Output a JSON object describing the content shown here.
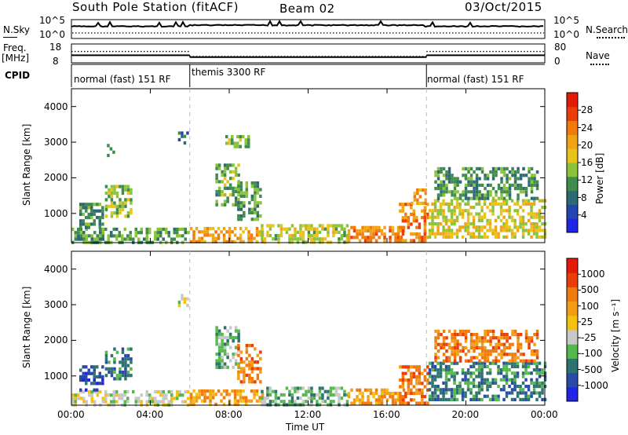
{
  "header": {
    "station": "South Pole Station (fitACF)",
    "beam": "Beam 02",
    "date": "03/Oct/2015"
  },
  "noise_panel": {
    "left_label": "N.Sky",
    "right_label": "N.Search",
    "left_ticks": [
      "10^5",
      "10^0"
    ],
    "right_ticks": [
      "10^5",
      "10^0"
    ]
  },
  "freq_panel": {
    "left_label_line1": "Freq.",
    "left_label_line2": "[MHz]",
    "right_label": "Nave",
    "left_ticks": [
      "18",
      "8"
    ],
    "right_ticks": [
      "80",
      "0"
    ],
    "freq_mhz": [
      {
        "from": 0,
        "to": 6,
        "value": 12
      },
      {
        "from": 6,
        "to": 18,
        "value": 11
      },
      {
        "from": 18,
        "to": 24,
        "value": 12
      }
    ],
    "nave": [
      {
        "from": 0,
        "to": 6,
        "value": 48
      },
      {
        "from": 6,
        "to": 18,
        "value": 27
      },
      {
        "from": 18,
        "to": 24,
        "value": 48
      }
    ]
  },
  "cpid_panel": {
    "label": "CPID",
    "segments": [
      {
        "label": "normal (fast) 151 RF",
        "start_h": 0,
        "end_h": 6
      },
      {
        "label": "themis 3300 RF",
        "start_h": 6,
        "end_h": 18
      },
      {
        "label": "normal (fast) 151 RF",
        "start_h": 18,
        "end_h": 24
      }
    ]
  },
  "chart_data": [
    {
      "type": "heatmap",
      "panel": "power",
      "ylabel": "Slant Range [km]",
      "xlabel": "Time UT",
      "xlim_hours": [
        0,
        24
      ],
      "ylim_km": [
        180,
        4500
      ],
      "yticks": [
        "1000",
        "2000",
        "3000",
        "4000"
      ],
      "xticks": [
        "00:00",
        "04:00",
        "08:00",
        "12:00",
        "16:00",
        "20:00",
        "00:00"
      ],
      "colorbar": {
        "label": "Power [dB]",
        "ticks": [
          "28",
          "24",
          "20",
          "16",
          "12",
          "8",
          "4"
        ],
        "range": [
          0,
          30
        ],
        "colors": [
          "#1f24e6",
          "#2345b0",
          "#2d6a73",
          "#3f8c4f",
          "#8bc43b",
          "#e8c319",
          "#f0a414",
          "#f07a0c",
          "#ea3d08",
          "#e31a06"
        ]
      },
      "echo_regions": [
        {
          "t0": 0.0,
          "t1": 5.9,
          "r0": 200,
          "r1": 600,
          "value": 11
        },
        {
          "t0": 0.4,
          "t1": 1.6,
          "r0": 600,
          "r1": 1300,
          "value": 9
        },
        {
          "t0": 1.7,
          "t1": 3.0,
          "r0": 900,
          "r1": 1800,
          "value": 13
        },
        {
          "t0": 1.8,
          "t1": 2.1,
          "r0": 2600,
          "r1": 2950,
          "value": 13
        },
        {
          "t0": 5.4,
          "t1": 5.9,
          "r0": 3000,
          "r1": 3300,
          "value": 6
        },
        {
          "t0": 6.0,
          "t1": 9.7,
          "r0": 200,
          "r1": 620,
          "value": 21
        },
        {
          "t0": 7.3,
          "t1": 8.5,
          "r0": 1200,
          "r1": 2400,
          "value": 12
        },
        {
          "t0": 8.4,
          "t1": 9.6,
          "r0": 800,
          "r1": 1900,
          "value": 11
        },
        {
          "t0": 7.8,
          "t1": 9.0,
          "r0": 2900,
          "r1": 3200,
          "value": 13
        },
        {
          "t0": 9.6,
          "t1": 14.0,
          "r0": 200,
          "r1": 700,
          "value": 15
        },
        {
          "t0": 14.0,
          "t1": 16.8,
          "r0": 200,
          "r1": 650,
          "value": 22
        },
        {
          "t0": 16.6,
          "t1": 18.0,
          "r0": 250,
          "r1": 1300,
          "value": 23
        },
        {
          "t0": 17.2,
          "t1": 17.9,
          "r0": 1300,
          "r1": 1700,
          "value": 20
        },
        {
          "t0": 18.1,
          "t1": 24.0,
          "r0": 350,
          "r1": 1400,
          "value": 16
        },
        {
          "t0": 18.4,
          "t1": 23.6,
          "r0": 1400,
          "r1": 2300,
          "value": 10
        }
      ]
    },
    {
      "type": "heatmap",
      "panel": "velocity",
      "ylabel": "Slant Range [km]",
      "xlabel": "Time UT",
      "xlim_hours": [
        0,
        24
      ],
      "ylim_km": [
        180,
        4500
      ],
      "yticks": [
        "1000",
        "2000",
        "3000",
        "4000"
      ],
      "xticks": [
        "00:00",
        "04:00",
        "08:00",
        "12:00",
        "16:00",
        "20:00",
        "00:00"
      ],
      "colorbar": {
        "label": "Velocity [m s⁻¹]",
        "ticks": [
          "1000",
          "500",
          "100",
          "25",
          "-25",
          "-100",
          "-500",
          "-1000"
        ],
        "colors": [
          "#1f24e6",
          "#2a4aa8",
          "#2e7370",
          "#56b94d",
          "#c8c8c8",
          "#f4c012",
          "#f49c16",
          "#f07a0c",
          "#ea3d08",
          "#e31a06"
        ]
      },
      "echo_regions": [
        {
          "t0": 0.0,
          "t1": 5.9,
          "r0": 200,
          "r1": 600,
          "value": 4
        },
        {
          "t0": 0.4,
          "t1": 1.6,
          "r0": 600,
          "r1": 1300,
          "value": 1
        },
        {
          "t0": 1.7,
          "t1": 3.0,
          "r0": 900,
          "r1": 1800,
          "value": 2
        },
        {
          "t0": 5.4,
          "t1": 5.9,
          "r0": 3000,
          "r1": 3300,
          "value": 4
        },
        {
          "t0": 6.0,
          "t1": 9.7,
          "r0": 200,
          "r1": 620,
          "value": 6
        },
        {
          "t0": 7.3,
          "t1": 8.5,
          "r0": 1200,
          "r1": 2400,
          "value": 3
        },
        {
          "t0": 8.4,
          "t1": 9.6,
          "r0": 800,
          "r1": 1900,
          "value": 7
        },
        {
          "t0": 9.6,
          "t1": 14.0,
          "r0": 200,
          "r1": 700,
          "value": 3
        },
        {
          "t0": 14.0,
          "t1": 16.8,
          "r0": 200,
          "r1": 650,
          "value": 6
        },
        {
          "t0": 16.6,
          "t1": 18.0,
          "r0": 250,
          "r1": 1300,
          "value": 7
        },
        {
          "t0": 18.1,
          "t1": 24.0,
          "r0": 350,
          "r1": 1400,
          "value": 2
        },
        {
          "t0": 18.4,
          "t1": 23.6,
          "r0": 1400,
          "r1": 2300,
          "value": 7
        }
      ]
    }
  ]
}
